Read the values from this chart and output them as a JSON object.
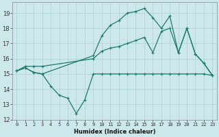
{
  "background_color": "#cde8ea",
  "grid_color": "#b0d4d8",
  "line_color": "#1a7a6e",
  "xlim": [
    -0.5,
    23.5
  ],
  "ylim": [
    12,
    19.7
  ],
  "yticks": [
    12,
    13,
    14,
    15,
    16,
    17,
    18,
    19
  ],
  "xticks": [
    0,
    1,
    2,
    3,
    4,
    5,
    6,
    7,
    8,
    9,
    10,
    11,
    12,
    13,
    14,
    15,
    16,
    17,
    18,
    19,
    20,
    21,
    22,
    23
  ],
  "xlabel": "Humidex (Indice chaleur)",
  "curve1_x": [
    0,
    1,
    2,
    3,
    4,
    5,
    6,
    7,
    8,
    9,
    10,
    11,
    12,
    13,
    14,
    15,
    16,
    17,
    18,
    19,
    20,
    21,
    22,
    23
  ],
  "curve1_y": [
    15.2,
    15.4,
    15.1,
    15.0,
    14.2,
    13.6,
    13.4,
    12.4,
    13.3,
    15.0,
    15.0,
    15.0,
    15.0,
    15.0,
    15.0,
    15.0,
    15.0,
    15.0,
    15.0,
    15.0,
    15.0,
    15.0,
    15.0,
    14.9
  ],
  "curve2_x": [
    0,
    1,
    2,
    3,
    9,
    10,
    11,
    12,
    13,
    14,
    15,
    16,
    17,
    18,
    19,
    20,
    21,
    22,
    23
  ],
  "curve2_y": [
    15.2,
    15.4,
    15.1,
    15.0,
    16.2,
    17.5,
    18.2,
    18.5,
    19.0,
    19.1,
    19.3,
    18.7,
    18.0,
    18.8,
    16.4,
    18.0,
    16.3,
    15.7,
    14.9
  ],
  "curve3_x": [
    0,
    1,
    2,
    3,
    9,
    10,
    11,
    12,
    13,
    14,
    15,
    16,
    17,
    18,
    19,
    20,
    21,
    22,
    23
  ],
  "curve3_y": [
    15.2,
    15.5,
    15.5,
    15.5,
    16.0,
    16.5,
    16.7,
    16.8,
    17.0,
    17.2,
    17.4,
    16.4,
    17.8,
    18.0,
    16.4,
    18.0,
    16.3,
    15.7,
    14.9
  ],
  "figsize": [
    3.2,
    2.0
  ],
  "dpi": 100,
  "xlabel_fontsize": 6,
  "tick_fontsize": 5
}
